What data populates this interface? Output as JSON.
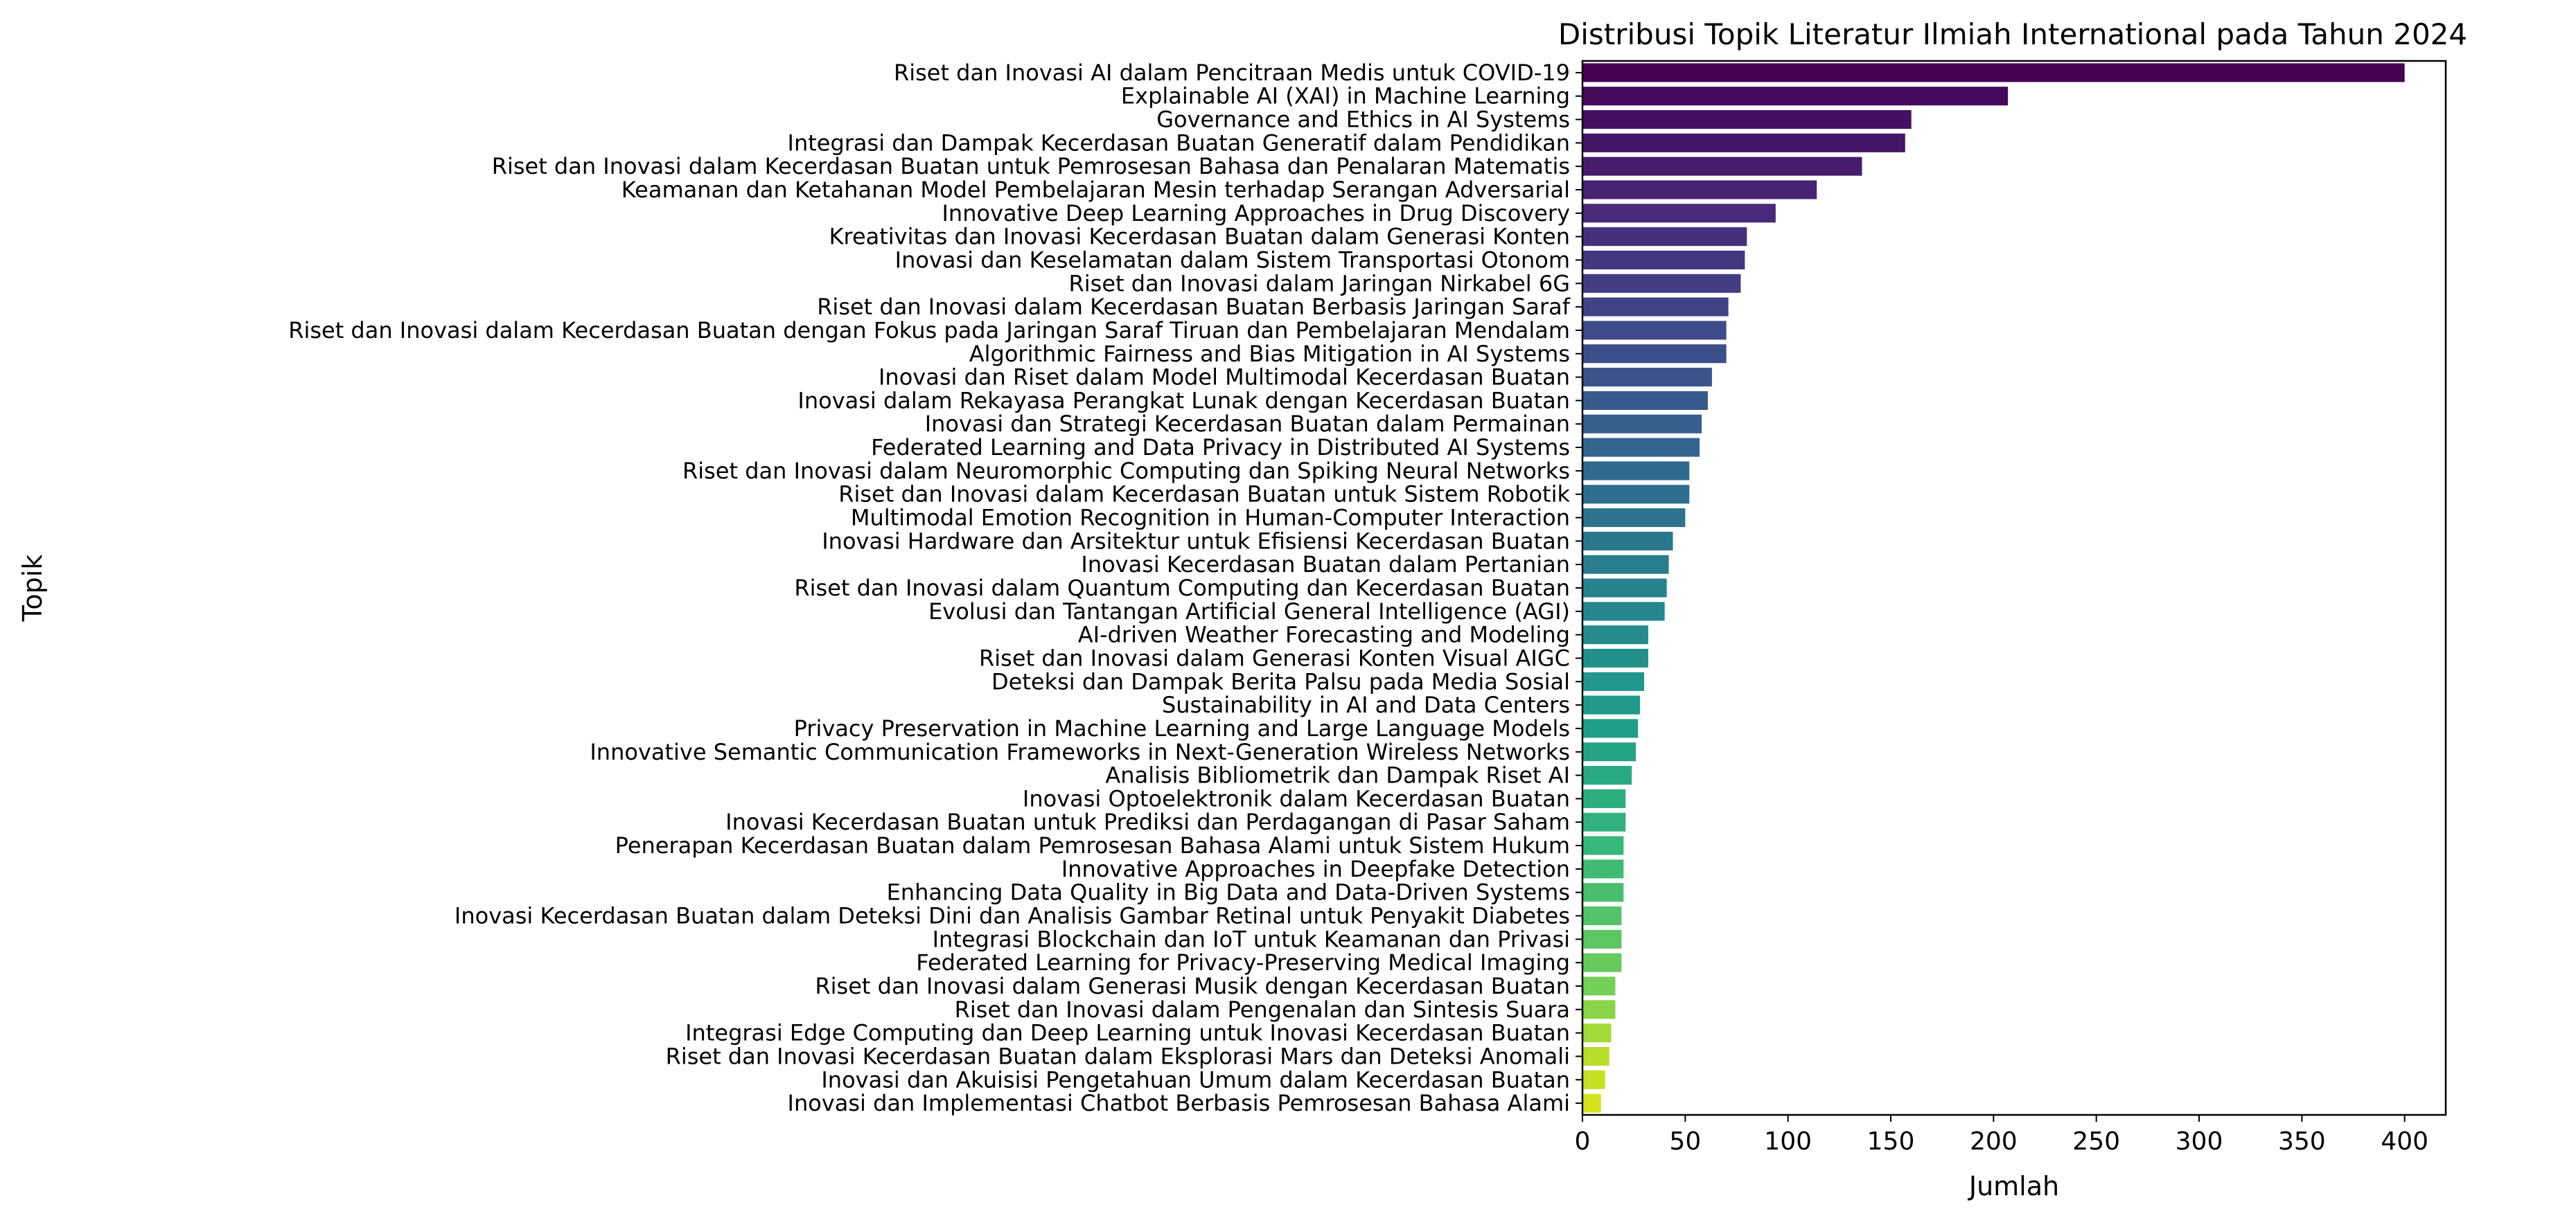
{
  "chart_data": {
    "type": "bar",
    "orientation": "horizontal",
    "title": "Distribusi Topik Literatur Ilmiah International pada Tahun 2024",
    "xlabel": "Jumlah",
    "ylabel": "Topik",
    "xlim": [
      0,
      420
    ],
    "xticks": [
      0,
      50,
      100,
      150,
      200,
      250,
      300,
      350,
      400
    ],
    "grid": false,
    "legend": "none",
    "colormap": "viridis",
    "colors": {
      "start": "#440154",
      "mid": "#21918c",
      "end": "#d4e21a"
    },
    "categories": [
      "Riset dan Inovasi AI dalam Pencitraan Medis untuk COVID-19",
      "Explainable AI (XAI) in Machine Learning",
      "Governance and Ethics in AI Systems",
      "Integrasi dan Dampak Kecerdasan Buatan Generatif dalam Pendidikan",
      "Riset dan Inovasi dalam Kecerdasan Buatan untuk Pemrosesan Bahasa dan Penalaran Matematis",
      "Keamanan dan Ketahanan Model Pembelajaran Mesin terhadap Serangan Adversarial",
      "Innovative Deep Learning Approaches in Drug Discovery",
      "Kreativitas dan Inovasi Kecerdasan Buatan dalam Generasi Konten",
      "Inovasi dan Keselamatan dalam Sistem Transportasi Otonom",
      "Riset dan Inovasi dalam Jaringan Nirkabel 6G",
      "Riset dan Inovasi dalam Kecerdasan Buatan Berbasis Jaringan Saraf",
      "Riset dan Inovasi dalam Kecerdasan Buatan dengan Fokus pada Jaringan Saraf Tiruan dan Pembelajaran Mendalam",
      "Algorithmic Fairness and Bias Mitigation in AI Systems",
      "Inovasi dan Riset dalam Model Multimodal Kecerdasan Buatan",
      "Inovasi dalam Rekayasa Perangkat Lunak dengan Kecerdasan Buatan",
      "Inovasi dan Strategi Kecerdasan Buatan dalam Permainan",
      "Federated Learning and Data Privacy in Distributed AI Systems",
      "Riset dan Inovasi dalam Neuromorphic Computing dan Spiking Neural Networks",
      "Riset dan Inovasi dalam Kecerdasan Buatan untuk Sistem Robotik",
      "Multimodal Emotion Recognition in Human-Computer Interaction",
      "Inovasi Hardware dan Arsitektur untuk Efisiensi Kecerdasan Buatan",
      "Inovasi Kecerdasan Buatan dalam Pertanian",
      "Riset dan Inovasi dalam Quantum Computing dan Kecerdasan Buatan",
      "Evolusi dan Tantangan Artificial General Intelligence (AGI)",
      "AI-driven Weather Forecasting and Modeling",
      "Riset dan Inovasi dalam Generasi Konten Visual AIGC",
      "Deteksi dan Dampak Berita Palsu pada Media Sosial",
      "Sustainability in AI and Data Centers",
      "Privacy Preservation in Machine Learning and Large Language Models",
      "Innovative Semantic Communication Frameworks in Next-Generation Wireless Networks",
      "Analisis Bibliometrik dan Dampak Riset AI",
      "Inovasi Optoelektronik dalam Kecerdasan Buatan",
      "Inovasi Kecerdasan Buatan untuk Prediksi dan Perdagangan di Pasar Saham",
      "Penerapan Kecerdasan Buatan dalam Pemrosesan Bahasa Alami untuk Sistem Hukum",
      "Innovative Approaches in Deepfake Detection",
      "Enhancing Data Quality in Big Data and Data-Driven Systems",
      "Inovasi Kecerdasan Buatan dalam Deteksi Dini dan Analisis Gambar Retinal untuk Penyakit Diabetes",
      "Integrasi Blockchain dan IoT untuk Keamanan dan Privasi",
      "Federated Learning for Privacy-Preserving Medical Imaging",
      "Riset dan Inovasi dalam Generasi Musik dengan Kecerdasan Buatan",
      "Riset dan Inovasi dalam Pengenalan dan Sintesis Suara",
      "Integrasi Edge Computing dan Deep Learning untuk Inovasi Kecerdasan Buatan",
      "Riset dan Inovasi Kecerdasan Buatan dalam Eksplorasi Mars dan Deteksi Anomali",
      "Inovasi dan Akuisisi Pengetahuan Umum dalam Kecerdasan Buatan",
      "Inovasi dan Implementasi Chatbot Berbasis Pemrosesan Bahasa Alami"
    ],
    "values": [
      400,
      207,
      160,
      157,
      136,
      114,
      94,
      80,
      79,
      77,
      71,
      70,
      70,
      63,
      61,
      58,
      57,
      52,
      52,
      50,
      44,
      42,
      41,
      40,
      32,
      32,
      30,
      28,
      27,
      26,
      24,
      21,
      21,
      20,
      20,
      20,
      19,
      19,
      19,
      16,
      16,
      14,
      13,
      11,
      9
    ]
  }
}
